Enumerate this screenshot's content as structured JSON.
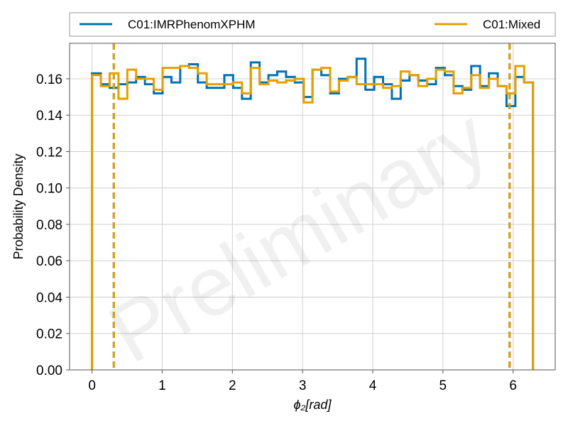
{
  "chart_data": {
    "type": "histogram",
    "xlabel": "ϕ₂[rad]",
    "ylabel": "Probability Density",
    "xlim": [
      -0.32,
      6.6
    ],
    "ylim": [
      0,
      0.1795
    ],
    "xticks": [
      0,
      1,
      2,
      3,
      4,
      5,
      6
    ],
    "yticks": [
      0.0,
      0.02,
      0.04,
      0.06,
      0.08,
      0.1,
      0.12,
      0.14,
      0.16
    ],
    "grid": true,
    "legend_position": "top, above plot",
    "watermark": "Preliminary",
    "bin_range": [
      0,
      6.2832
    ],
    "series": [
      {
        "name": "C01:IMRPhenomXPHM",
        "color": "#0072B2",
        "values": [
          0.163,
          0.157,
          0.155,
          0.157,
          0.158,
          0.161,
          0.157,
          0.152,
          0.161,
          0.158,
          0.167,
          0.168,
          0.158,
          0.155,
          0.155,
          0.162,
          0.155,
          0.149,
          0.169,
          0.158,
          0.162,
          0.164,
          0.161,
          0.158,
          0.15,
          0.165,
          0.162,
          0.152,
          0.16,
          0.161,
          0.171,
          0.154,
          0.161,
          0.157,
          0.149,
          0.159,
          0.162,
          0.159,
          0.157,
          0.166,
          0.162,
          0.156,
          0.154,
          0.167,
          0.156,
          0.163,
          0.156,
          0.145,
          0.161,
          0.158
        ],
        "ci_lines": [
          0.31,
          5.95
        ]
      },
      {
        "name": "C01:Mixed",
        "color": "#E69F00",
        "values": [
          0.162,
          0.156,
          0.163,
          0.149,
          0.165,
          0.16,
          0.16,
          0.154,
          0.166,
          0.166,
          0.167,
          0.166,
          0.163,
          0.157,
          0.157,
          0.157,
          0.158,
          0.152,
          0.166,
          0.157,
          0.159,
          0.158,
          0.159,
          0.16,
          0.147,
          0.165,
          0.166,
          0.153,
          0.159,
          0.161,
          0.157,
          0.157,
          0.157,
          0.155,
          0.156,
          0.164,
          0.162,
          0.156,
          0.16,
          0.165,
          0.164,
          0.152,
          0.155,
          0.162,
          0.155,
          0.16,
          0.156,
          0.152,
          0.167,
          0.158
        ],
        "ci_lines": [
          0.31,
          5.95
        ]
      }
    ]
  }
}
